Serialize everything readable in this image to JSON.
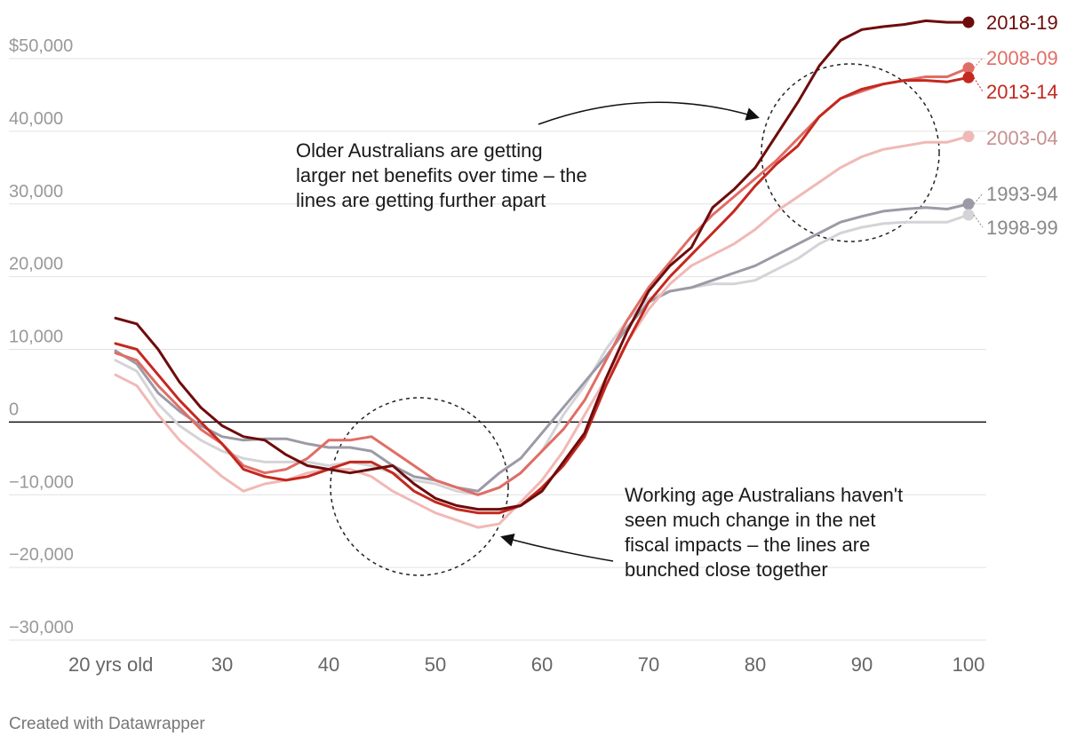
{
  "chart_data": {
    "type": "line",
    "title": "",
    "xlabel": "",
    "ylabel": "",
    "xlim": [
      20,
      100
    ],
    "ylim": [
      -30000,
      55000
    ],
    "y_ticks": [
      {
        "value": 50000,
        "label": "$50,000"
      },
      {
        "value": 40000,
        "label": "40,000"
      },
      {
        "value": 30000,
        "label": "30,000"
      },
      {
        "value": 20000,
        "label": "20,000"
      },
      {
        "value": 10000,
        "label": "10,000"
      },
      {
        "value": 0,
        "label": "0"
      },
      {
        "value": -10000,
        "label": "−10,000"
      },
      {
        "value": -20000,
        "label": "−20,000"
      },
      {
        "value": -30000,
        "label": "−30,000"
      }
    ],
    "x_ticks": [
      {
        "value": 20,
        "label": "20 yrs old"
      },
      {
        "value": 30,
        "label": "30"
      },
      {
        "value": 40,
        "label": "40"
      },
      {
        "value": 50,
        "label": "50"
      },
      {
        "value": 60,
        "label": "60"
      },
      {
        "value": 70,
        "label": "70"
      },
      {
        "value": 80,
        "label": "80"
      },
      {
        "value": 90,
        "label": "90"
      },
      {
        "value": 100,
        "label": "100"
      }
    ],
    "series": [
      {
        "name": "1998-99",
        "color": "#d4d4d8",
        "points": [
          [
            20,
            8500
          ],
          [
            22,
            7000
          ],
          [
            24,
            2500
          ],
          [
            26,
            -500
          ],
          [
            28,
            -2500
          ],
          [
            30,
            -4000
          ],
          [
            32,
            -5000
          ],
          [
            34,
            -5500
          ],
          [
            36,
            -5500
          ],
          [
            38,
            -5500
          ],
          [
            40,
            -6000
          ],
          [
            42,
            -5500
          ],
          [
            44,
            -6000
          ],
          [
            46,
            -7000
          ],
          [
            48,
            -8000
          ],
          [
            50,
            -8500
          ],
          [
            52,
            -9500
          ],
          [
            54,
            -10000
          ],
          [
            56,
            -9000
          ],
          [
            58,
            -7000
          ],
          [
            60,
            -4000
          ],
          [
            62,
            1000
          ],
          [
            64,
            5000
          ],
          [
            66,
            10000
          ],
          [
            68,
            14000
          ],
          [
            70,
            17000
          ],
          [
            72,
            18000
          ],
          [
            74,
            18500
          ],
          [
            76,
            19000
          ],
          [
            78,
            19000
          ],
          [
            80,
            19500
          ],
          [
            82,
            21000
          ],
          [
            84,
            22500
          ],
          [
            86,
            24500
          ],
          [
            88,
            26000
          ],
          [
            90,
            26800
          ],
          [
            92,
            27300
          ],
          [
            94,
            27500
          ],
          [
            96,
            27500
          ],
          [
            98,
            27500
          ],
          [
            100,
            28500
          ]
        ]
      },
      {
        "name": "1993-94",
        "color": "#9b9aa6",
        "points": [
          [
            20,
            9800
          ],
          [
            22,
            8000
          ],
          [
            24,
            4000
          ],
          [
            26,
            1500
          ],
          [
            28,
            -500
          ],
          [
            30,
            -2000
          ],
          [
            32,
            -2500
          ],
          [
            34,
            -2300
          ],
          [
            36,
            -2300
          ],
          [
            38,
            -3000
          ],
          [
            40,
            -3500
          ],
          [
            42,
            -3500
          ],
          [
            44,
            -4000
          ],
          [
            46,
            -6000
          ],
          [
            48,
            -7500
          ],
          [
            50,
            -8000
          ],
          [
            52,
            -9000
          ],
          [
            54,
            -9500
          ],
          [
            56,
            -7000
          ],
          [
            58,
            -5000
          ],
          [
            60,
            -1500
          ],
          [
            62,
            2000
          ],
          [
            64,
            5500
          ],
          [
            66,
            9000
          ],
          [
            68,
            13000
          ],
          [
            70,
            16500
          ],
          [
            72,
            18000
          ],
          [
            74,
            18500
          ],
          [
            76,
            19500
          ],
          [
            78,
            20500
          ],
          [
            80,
            21500
          ],
          [
            82,
            23000
          ],
          [
            84,
            24500
          ],
          [
            86,
            26000
          ],
          [
            88,
            27500
          ],
          [
            90,
            28300
          ],
          [
            92,
            29000
          ],
          [
            94,
            29300
          ],
          [
            96,
            29500
          ],
          [
            98,
            29300
          ],
          [
            100,
            30000
          ]
        ]
      },
      {
        "name": "2003-04",
        "color": "#f0b9b6",
        "points": [
          [
            20,
            6500
          ],
          [
            22,
            5000
          ],
          [
            24,
            1000
          ],
          [
            26,
            -2500
          ],
          [
            28,
            -5000
          ],
          [
            30,
            -7500
          ],
          [
            32,
            -9500
          ],
          [
            34,
            -8500
          ],
          [
            36,
            -8000
          ],
          [
            38,
            -7000
          ],
          [
            40,
            -6500
          ],
          [
            42,
            -6500
          ],
          [
            44,
            -7500
          ],
          [
            46,
            -9500
          ],
          [
            48,
            -11000
          ],
          [
            50,
            -12500
          ],
          [
            52,
            -13500
          ],
          [
            54,
            -14500
          ],
          [
            56,
            -14000
          ],
          [
            58,
            -11000
          ],
          [
            60,
            -8000
          ],
          [
            62,
            -4000
          ],
          [
            64,
            1000
          ],
          [
            66,
            6000
          ],
          [
            68,
            11000
          ],
          [
            70,
            15500
          ],
          [
            72,
            19000
          ],
          [
            74,
            21500
          ],
          [
            76,
            23000
          ],
          [
            78,
            24500
          ],
          [
            80,
            26500
          ],
          [
            82,
            29000
          ],
          [
            84,
            31000
          ],
          [
            86,
            33000
          ],
          [
            88,
            35000
          ],
          [
            90,
            36500
          ],
          [
            92,
            37500
          ],
          [
            94,
            38000
          ],
          [
            96,
            38500
          ],
          [
            98,
            38500
          ],
          [
            100,
            39300
          ]
        ]
      },
      {
        "name": "2008-09",
        "color": "#e06d65",
        "points": [
          [
            20,
            9500
          ],
          [
            22,
            8500
          ],
          [
            24,
            5000
          ],
          [
            26,
            2000
          ],
          [
            28,
            -1000
          ],
          [
            30,
            -3000
          ],
          [
            32,
            -6000
          ],
          [
            34,
            -7000
          ],
          [
            36,
            -6500
          ],
          [
            38,
            -5000
          ],
          [
            40,
            -2500
          ],
          [
            42,
            -2500
          ],
          [
            44,
            -2000
          ],
          [
            46,
            -4000
          ],
          [
            48,
            -6000
          ],
          [
            50,
            -8000
          ],
          [
            52,
            -9000
          ],
          [
            54,
            -10000
          ],
          [
            56,
            -9000
          ],
          [
            58,
            -7000
          ],
          [
            60,
            -4000
          ],
          [
            62,
            -1000
          ],
          [
            64,
            3000
          ],
          [
            66,
            8500
          ],
          [
            68,
            14000
          ],
          [
            70,
            18500
          ],
          [
            72,
            22000
          ],
          [
            74,
            25500
          ],
          [
            76,
            28500
          ],
          [
            78,
            31000
          ],
          [
            80,
            33500
          ],
          [
            82,
            36000
          ],
          [
            84,
            39000
          ],
          [
            86,
            42000
          ],
          [
            88,
            44500
          ],
          [
            90,
            45500
          ],
          [
            92,
            46500
          ],
          [
            94,
            47000
          ],
          [
            96,
            47500
          ],
          [
            98,
            47500
          ],
          [
            100,
            48700
          ]
        ]
      },
      {
        "name": "2013-14",
        "color": "#c4281f",
        "points": [
          [
            20,
            10800
          ],
          [
            22,
            10000
          ],
          [
            24,
            6500
          ],
          [
            26,
            3000
          ],
          [
            28,
            0
          ],
          [
            30,
            -3000
          ],
          [
            32,
            -6500
          ],
          [
            34,
            -7500
          ],
          [
            36,
            -8000
          ],
          [
            38,
            -7500
          ],
          [
            40,
            -6500
          ],
          [
            42,
            -5500
          ],
          [
            44,
            -5500
          ],
          [
            46,
            -7000
          ],
          [
            48,
            -9500
          ],
          [
            50,
            -11000
          ],
          [
            52,
            -12000
          ],
          [
            54,
            -12500
          ],
          [
            56,
            -12500
          ],
          [
            58,
            -11500
          ],
          [
            60,
            -9000
          ],
          [
            62,
            -6000
          ],
          [
            64,
            -2000
          ],
          [
            66,
            5000
          ],
          [
            68,
            11000
          ],
          [
            70,
            16500
          ],
          [
            72,
            20000
          ],
          [
            74,
            23000
          ],
          [
            76,
            26000
          ],
          [
            78,
            29000
          ],
          [
            80,
            32500
          ],
          [
            82,
            35500
          ],
          [
            84,
            38000
          ],
          [
            86,
            42000
          ],
          [
            88,
            44500
          ],
          [
            90,
            45800
          ],
          [
            92,
            46500
          ],
          [
            94,
            47000
          ],
          [
            96,
            47000
          ],
          [
            98,
            46800
          ],
          [
            100,
            47400
          ]
        ]
      },
      {
        "name": "2018-19",
        "color": "#6e0c0c",
        "points": [
          [
            20,
            14300
          ],
          [
            22,
            13500
          ],
          [
            24,
            10000
          ],
          [
            26,
            5500
          ],
          [
            28,
            2000
          ],
          [
            30,
            -500
          ],
          [
            32,
            -2000
          ],
          [
            34,
            -2500
          ],
          [
            36,
            -4500
          ],
          [
            38,
            -6000
          ],
          [
            40,
            -6500
          ],
          [
            42,
            -7000
          ],
          [
            44,
            -6500
          ],
          [
            46,
            -6000
          ],
          [
            48,
            -8500
          ],
          [
            50,
            -10500
          ],
          [
            52,
            -11500
          ],
          [
            54,
            -12000
          ],
          [
            56,
            -12000
          ],
          [
            58,
            -11500
          ],
          [
            60,
            -9500
          ],
          [
            62,
            -5500
          ],
          [
            64,
            -1500
          ],
          [
            66,
            6000
          ],
          [
            68,
            12500
          ],
          [
            70,
            18000
          ],
          [
            72,
            21500
          ],
          [
            74,
            24000
          ],
          [
            76,
            29500
          ],
          [
            78,
            32000
          ],
          [
            80,
            35000
          ],
          [
            82,
            39500
          ],
          [
            84,
            44000
          ],
          [
            86,
            49000
          ],
          [
            88,
            52500
          ],
          [
            90,
            54000
          ],
          [
            92,
            54400
          ],
          [
            94,
            54700
          ],
          [
            96,
            55200
          ],
          [
            98,
            55000
          ],
          [
            100,
            55000
          ]
        ]
      }
    ],
    "end_labels": [
      {
        "series": "2018-19",
        "text": "2018-19",
        "color": "#6e0c0c"
      },
      {
        "series": "2008-09",
        "text": "2008-09",
        "color": "#e06d65"
      },
      {
        "series": "2013-14",
        "text": "2013-14",
        "color": "#c4281f"
      },
      {
        "series": "2003-04",
        "text": "2003-04",
        "color": "#c88f8f"
      },
      {
        "series": "1993-94",
        "text": "1993-94",
        "color": "#888888"
      },
      {
        "series": "1998-99",
        "text": "1998-99",
        "color": "#888888"
      }
    ],
    "annotations": [
      {
        "name": "older-australians-annotation",
        "lines": [
          "Older Australians are getting",
          "larger net benefits over time – the",
          "lines are getting further apart"
        ]
      },
      {
        "name": "working-age-annotation",
        "lines": [
          "Working age Australians haven't",
          "seen much change in the net",
          "fiscal impacts – the lines are",
          "bunched close together"
        ]
      }
    ]
  },
  "footer": {
    "credit": "Created with Datawrapper"
  }
}
